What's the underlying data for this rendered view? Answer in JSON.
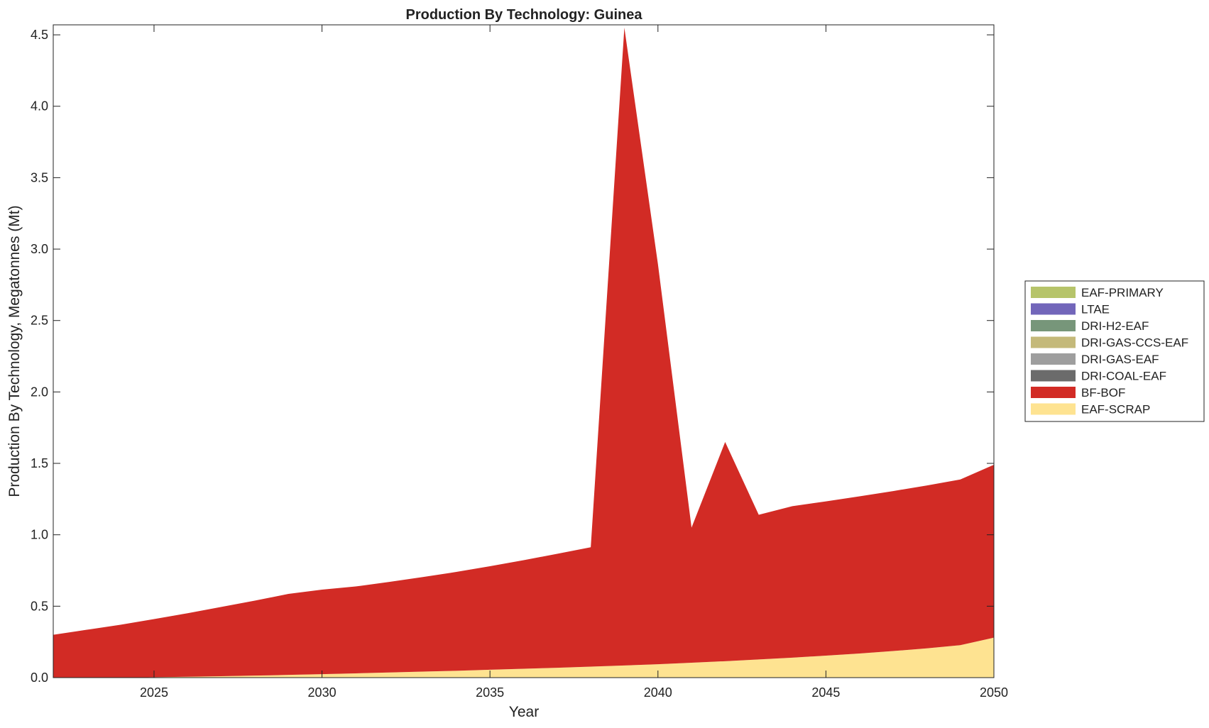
{
  "chart_data": {
    "type": "area",
    "stacked": true,
    "title": "Production By Technology: Guinea",
    "xlabel": "Year",
    "ylabel": "Production By Technology, Megatonnes (Mt)",
    "xlim": [
      2022,
      2050
    ],
    "ylim": [
      0,
      4.57
    ],
    "xticks": [
      2025,
      2030,
      2035,
      2040,
      2045,
      2050
    ],
    "yticks": [
      0.0,
      0.5,
      1.0,
      1.5,
      2.0,
      2.5,
      3.0,
      3.5,
      4.0,
      4.5
    ],
    "ytick_labels": [
      "0.0",
      "0.5",
      "1.0",
      "1.5",
      "2.0",
      "2.5",
      "3.0",
      "3.5",
      "4.0",
      "4.5"
    ],
    "grid": false,
    "legend_position": "right",
    "x": [
      2022,
      2023,
      2024,
      2025,
      2026,
      2027,
      2028,
      2029,
      2030,
      2031,
      2032,
      2033,
      2034,
      2035,
      2036,
      2037,
      2038,
      2039,
      2040,
      2041,
      2042,
      2043,
      2044,
      2045,
      2046,
      2047,
      2048,
      2049,
      2050
    ],
    "series": [
      {
        "name": "EAF-SCRAP",
        "color": "#FEE391",
        "values": [
          0.0,
          0.0,
          0.0,
          0.003,
          0.006,
          0.01,
          0.014,
          0.019,
          0.024,
          0.03,
          0.036,
          0.042,
          0.048,
          0.055,
          0.062,
          0.069,
          0.077,
          0.085,
          0.094,
          0.104,
          0.115,
          0.127,
          0.14,
          0.154,
          0.169,
          0.186,
          0.205,
          0.227,
          0.28
        ]
      },
      {
        "name": "BF-BOF",
        "color": "#D22B25",
        "values": [
          0.3,
          0.335,
          0.37,
          0.407,
          0.445,
          0.485,
          0.525,
          0.567,
          0.592,
          0.608,
          0.634,
          0.662,
          0.692,
          0.725,
          0.76,
          0.798,
          0.836,
          4.465,
          2.8,
          0.946,
          1.535,
          1.013,
          1.06,
          1.08,
          1.1,
          1.12,
          1.14,
          1.16,
          1.21
        ]
      },
      {
        "name": "DRI-COAL-EAF",
        "color": "#6B6B6B",
        "values": [
          0,
          0,
          0,
          0,
          0,
          0,
          0,
          0,
          0,
          0,
          0,
          0,
          0,
          0,
          0,
          0,
          0,
          0,
          0,
          0,
          0,
          0,
          0,
          0,
          0,
          0,
          0,
          0,
          0
        ]
      },
      {
        "name": "DRI-GAS-EAF",
        "color": "#9E9E9E",
        "values": [
          0,
          0,
          0,
          0,
          0,
          0,
          0,
          0,
          0,
          0,
          0,
          0,
          0,
          0,
          0,
          0,
          0,
          0,
          0,
          0,
          0,
          0,
          0,
          0,
          0,
          0,
          0,
          0,
          0
        ]
      },
      {
        "name": "DRI-GAS-CCS-EAF",
        "color": "#C4B97A",
        "values": [
          0,
          0,
          0,
          0,
          0,
          0,
          0,
          0,
          0,
          0,
          0,
          0,
          0,
          0,
          0,
          0,
          0,
          0,
          0,
          0,
          0,
          0,
          0,
          0,
          0,
          0,
          0,
          0,
          0
        ]
      },
      {
        "name": "DRI-H2-EAF",
        "color": "#77967A",
        "values": [
          0,
          0,
          0,
          0,
          0,
          0,
          0,
          0,
          0,
          0,
          0,
          0,
          0,
          0,
          0,
          0,
          0,
          0,
          0,
          0,
          0,
          0,
          0,
          0,
          0,
          0,
          0,
          0,
          0
        ]
      },
      {
        "name": "LTAE",
        "color": "#7266BA",
        "values": [
          0,
          0,
          0,
          0,
          0,
          0,
          0,
          0,
          0,
          0,
          0,
          0,
          0,
          0,
          0,
          0,
          0,
          0,
          0,
          0,
          0,
          0,
          0,
          0,
          0,
          0,
          0,
          0,
          0
        ]
      },
      {
        "name": "EAF-PRIMARY",
        "color": "#B6C46A",
        "values": [
          0,
          0,
          0,
          0,
          0,
          0,
          0,
          0,
          0,
          0,
          0,
          0,
          0,
          0,
          0,
          0,
          0,
          0,
          0,
          0,
          0,
          0,
          0,
          0,
          0,
          0,
          0,
          0,
          0
        ]
      }
    ],
    "legend_order": [
      "EAF-PRIMARY",
      "LTAE",
      "DRI-H2-EAF",
      "DRI-GAS-CCS-EAF",
      "DRI-GAS-EAF",
      "DRI-COAL-EAF",
      "BF-BOF",
      "EAF-SCRAP"
    ]
  }
}
